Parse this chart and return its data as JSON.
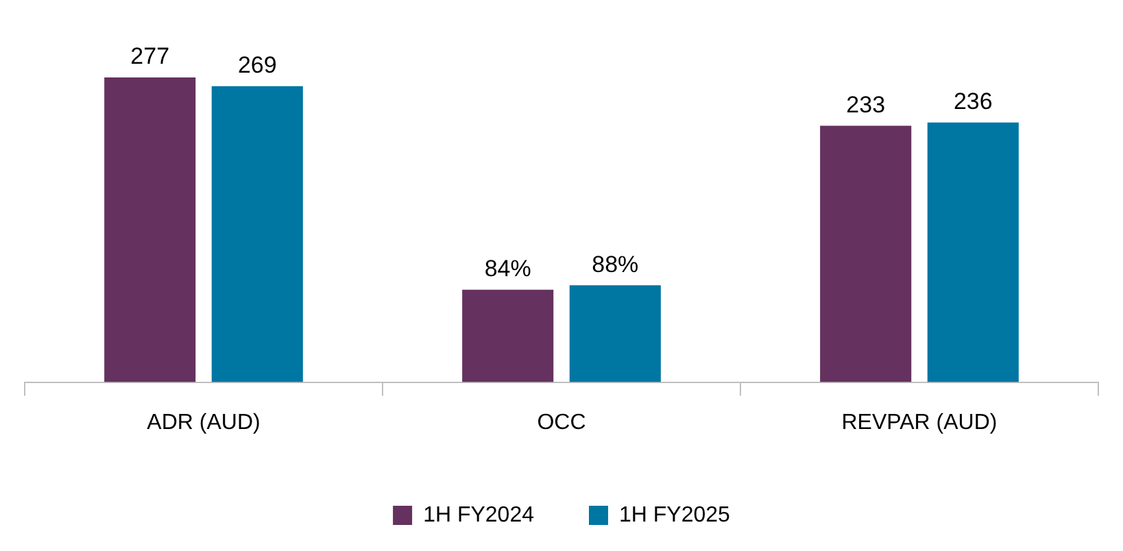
{
  "chart_data": {
    "type": "bar",
    "categories": [
      "ADR (AUD)",
      "OCC",
      "REVPAR (AUD)"
    ],
    "series": [
      {
        "name": "1H FY2024",
        "color": "#65315f",
        "values": [
          277,
          84,
          233
        ],
        "value_labels": [
          "277",
          "84%",
          "233"
        ]
      },
      {
        "name": "1H FY2025",
        "color": "#0076a3",
        "values": [
          269,
          88,
          236
        ],
        "value_labels": [
          "269",
          "88%",
          "236"
        ]
      }
    ],
    "legend": "bottom"
  }
}
